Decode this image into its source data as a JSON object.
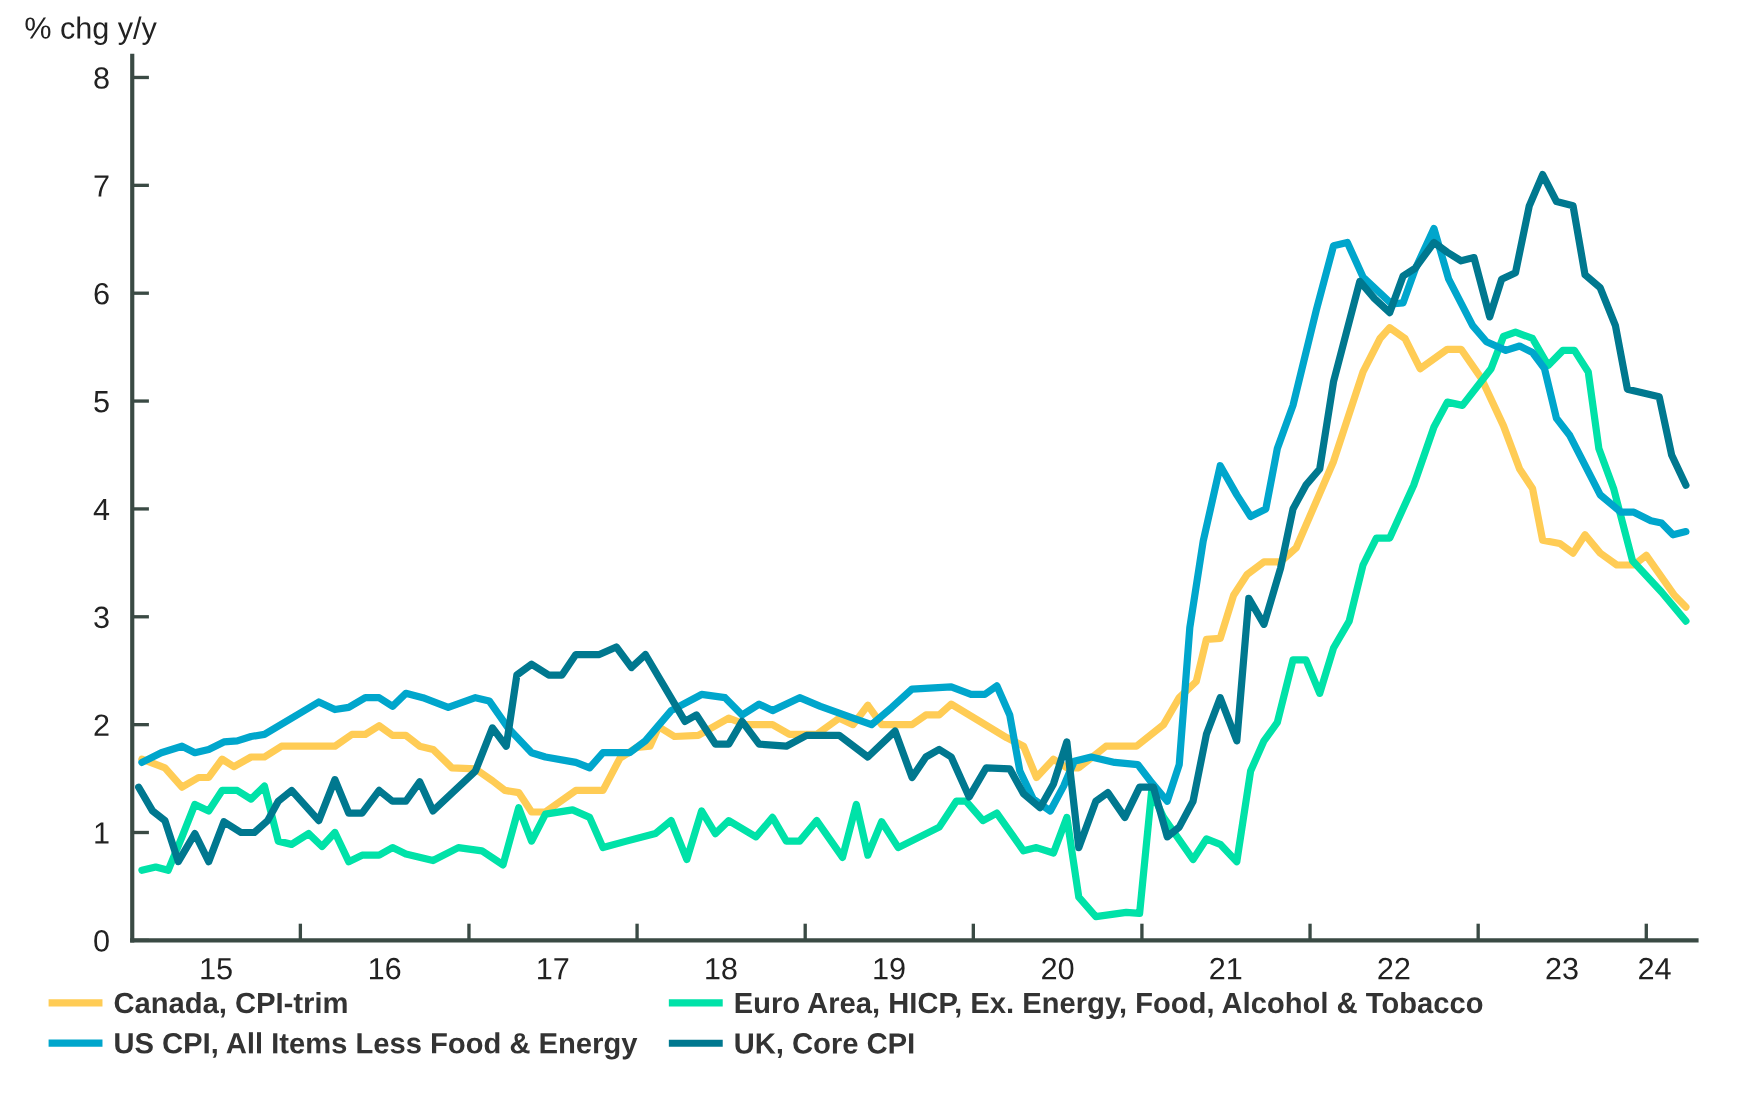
{
  "chart_data": {
    "type": "line",
    "ylabel": "% chg y/y",
    "xlim": [
      "2015-01-01",
      "2024-04-19"
    ],
    "ylim": [
      0,
      8.2
    ],
    "yticks": [
      0,
      1,
      2,
      3,
      4,
      5,
      6,
      7,
      8
    ],
    "xticks": [
      {
        "value": "2016-01-01",
        "label": null
      },
      {
        "value": "2017-01-01",
        "label": null
      },
      {
        "value": "2018-01-01",
        "label": null
      },
      {
        "value": "2019-01-01",
        "label": null
      },
      {
        "value": "2020-01-01",
        "label": null
      },
      {
        "value": "2021-01-01",
        "label": null
      },
      {
        "value": "2022-01-01",
        "label": null
      },
      {
        "value": "2023-01-01",
        "label": null
      },
      {
        "value": "2024-01-01",
        "label": null
      },
      {
        "value": "2015-07-02",
        "label": "15"
      },
      {
        "value": "2016-07-02",
        "label": "16"
      },
      {
        "value": "2017-07-02",
        "label": "17"
      },
      {
        "value": "2018-07-02",
        "label": "18"
      },
      {
        "value": "2019-07-02",
        "label": "19"
      },
      {
        "value": "2020-07-02",
        "label": "20"
      },
      {
        "value": "2021-07-02",
        "label": "21"
      },
      {
        "value": "2022-07-02",
        "label": "22"
      },
      {
        "value": "2023-07-02",
        "label": "23"
      },
      {
        "value": "2024-01-19",
        "label": "24"
      }
    ],
    "grid": false,
    "legend": "bottom",
    "marker": "none",
    "line_style": "solid",
    "series": [
      {
        "name": "Canada, CPI-trim",
        "color": "#ffcc55",
        "x": [
          "2015-01-22",
          "2015-03-13",
          "2015-04-19",
          "2015-05-25",
          "2015-06-16",
          "2015-07-15",
          "2015-08-10",
          "2015-09-16",
          "2015-10-15",
          "2015-11-21",
          "2016-03-16",
          "2016-04-22",
          "2016-05-21",
          "2016-06-20",
          "2016-07-19",
          "2016-08-17",
          "2016-09-16",
          "2016-10-15",
          "2016-11-25",
          "2017-01-15",
          "2017-02-21",
          "2017-03-20",
          "2017-04-19",
          "2017-05-17",
          "2017-06-16",
          "2017-08-21",
          "2017-10-19",
          "2017-11-25",
          "2018-01-01",
          "2018-01-29",
          "2018-02-17",
          "2018-03-23",
          "2018-05-14",
          "2018-07-19",
          "2018-08-25",
          "2018-10-22",
          "2018-11-28",
          "2019-01-26",
          "2019-03-16",
          "2019-04-15",
          "2019-05-17",
          "2019-06-16",
          "2019-08-21",
          "2019-09-20",
          "2019-10-19",
          "2019-11-14",
          "2020-01-15",
          "2020-03-13",
          "2020-04-19",
          "2020-05-17",
          "2020-06-23",
          "2020-07-22",
          "2020-08-17",
          "2020-10-15",
          "2020-12-20",
          "2021-02-17",
          "2021-03-23",
          "2021-04-29",
          "2021-05-21",
          "2021-06-20",
          "2021-07-19",
          "2021-08-17",
          "2021-09-23",
          "2021-10-29",
          "2021-12-02",
          "2022-02-21",
          "2022-04-26",
          "2022-06-02",
          "2022-06-23",
          "2022-07-26",
          "2022-08-28",
          "2022-10-26",
          "2022-11-25",
          "2023-01-08",
          "2023-02-25",
          "2023-04-01",
          "2023-04-29",
          "2023-05-21",
          "2023-06-27",
          "2023-07-26",
          "2023-08-21",
          "2023-09-23",
          "2023-10-29",
          "2023-12-05",
          "2024-01-01",
          "2024-03-02",
          "2024-03-27"
        ],
        "values": [
          1.68,
          1.6,
          1.42,
          1.51,
          1.51,
          1.68,
          1.61,
          1.7,
          1.7,
          1.8,
          1.8,
          1.91,
          1.91,
          1.99,
          1.9,
          1.9,
          1.8,
          1.77,
          1.6,
          1.59,
          1.48,
          1.39,
          1.37,
          1.19,
          1.19,
          1.39,
          1.39,
          1.69,
          1.79,
          1.8,
          1.98,
          1.89,
          1.9,
          2.06,
          2.0,
          2.0,
          1.91,
          1.91,
          2.06,
          2.0,
          2.18,
          2.0,
          2.0,
          2.09,
          2.09,
          2.19,
          2.03,
          1.88,
          1.8,
          1.51,
          1.68,
          1.6,
          1.6,
          1.8,
          1.8,
          2.0,
          2.25,
          2.4,
          2.79,
          2.8,
          3.2,
          3.39,
          3.51,
          3.51,
          3.64,
          4.44,
          5.27,
          5.58,
          5.68,
          5.58,
          5.3,
          5.48,
          5.48,
          5.21,
          4.77,
          4.37,
          4.19,
          3.71,
          3.68,
          3.59,
          3.76,
          3.59,
          3.48,
          3.48,
          3.57,
          3.2,
          3.09
        ]
      },
      {
        "name": "Euro Area, HICP, Ex. Energy, Food, Alcohol & Tobacco",
        "color": "#00e2a8",
        "x": [
          "2015-01-22",
          "2015-02-21",
          "2015-03-20",
          "2015-04-19",
          "2015-05-17",
          "2015-06-16",
          "2015-07-15",
          "2015-08-17",
          "2015-09-16",
          "2015-10-15",
          "2015-11-14",
          "2015-12-13",
          "2016-01-19",
          "2016-02-17",
          "2016-03-16",
          "2016-04-15",
          "2016-05-14",
          "2016-06-20",
          "2016-07-19",
          "2016-08-17",
          "2016-10-15",
          "2016-12-09",
          "2017-01-29",
          "2017-03-16",
          "2017-04-19",
          "2017-05-17",
          "2017-06-16",
          "2017-08-14",
          "2017-09-20",
          "2017-10-19",
          "2017-12-09",
          "2018-02-10",
          "2018-03-16",
          "2018-04-19",
          "2018-05-21",
          "2018-06-20",
          "2018-07-19",
          "2018-09-16",
          "2018-10-22",
          "2018-11-21",
          "2018-12-20",
          "2019-01-26",
          "2019-03-23",
          "2019-04-22",
          "2019-05-17",
          "2019-06-16",
          "2019-07-22",
          "2019-10-19",
          "2019-11-25",
          "2019-12-16",
          "2020-01-22",
          "2020-02-21",
          "2020-04-19",
          "2020-05-17",
          "2020-06-23",
          "2020-07-22",
          "2020-08-17",
          "2020-09-23",
          "2020-11-28",
          "2020-12-27",
          "2021-01-22",
          "2021-02-17",
          "2021-04-22",
          "2021-05-21",
          "2021-06-20",
          "2021-07-26",
          "2021-08-25",
          "2021-09-23",
          "2021-10-22",
          "2021-11-25",
          "2021-12-23",
          "2022-01-22",
          "2022-02-21",
          "2022-03-27",
          "2022-04-26",
          "2022-05-25",
          "2022-06-23",
          "2022-08-14",
          "2022-09-27",
          "2022-10-26",
          "2022-11-28",
          "2023-01-29",
          "2023-02-25",
          "2023-03-23",
          "2023-04-29",
          "2023-06-02",
          "2023-07-04",
          "2023-07-29",
          "2023-08-28",
          "2023-09-20",
          "2023-10-22",
          "2023-12-02",
          "2024-02-03",
          "2024-03-27"
        ],
        "values": [
          0.65,
          0.68,
          0.65,
          0.96,
          1.26,
          1.2,
          1.39,
          1.39,
          1.31,
          1.43,
          0.92,
          0.89,
          0.99,
          0.87,
          1.0,
          0.73,
          0.79,
          0.79,
          0.86,
          0.8,
          0.74,
          0.86,
          0.83,
          0.7,
          1.23,
          0.92,
          1.17,
          1.21,
          1.14,
          0.86,
          0.92,
          0.99,
          1.11,
          0.75,
          1.2,
          0.99,
          1.11,
          0.96,
          1.14,
          0.92,
          0.92,
          1.11,
          0.77,
          1.26,
          0.79,
          1.1,
          0.86,
          1.05,
          1.29,
          1.29,
          1.11,
          1.18,
          0.83,
          0.86,
          0.81,
          1.14,
          0.4,
          0.22,
          0.26,
          0.25,
          1.38,
          1.14,
          0.75,
          0.94,
          0.89,
          0.73,
          1.57,
          1.85,
          2.02,
          2.6,
          2.6,
          2.29,
          2.71,
          2.96,
          3.48,
          3.73,
          3.73,
          4.22,
          4.76,
          4.99,
          4.96,
          5.3,
          5.6,
          5.64,
          5.58,
          5.33,
          5.47,
          5.47,
          5.27,
          4.56,
          4.19,
          3.52,
          3.23,
          2.96
        ]
      },
      {
        "name": "US CPI, All Items Less Food & Energy",
        "color": "#00a6cc",
        "x": [
          "2015-01-22",
          "2015-03-05",
          "2015-04-19",
          "2015-05-17",
          "2015-06-16",
          "2015-07-19",
          "2015-08-17",
          "2015-09-16",
          "2015-10-15",
          "2016-02-10",
          "2016-03-16",
          "2016-04-15",
          "2016-05-21",
          "2016-06-20",
          "2016-07-19",
          "2016-08-17",
          "2016-09-23",
          "2016-11-17",
          "2017-01-15",
          "2017-02-14",
          "2017-03-27",
          "2017-05-17",
          "2017-06-16",
          "2017-08-21",
          "2017-09-20",
          "2017-10-19",
          "2017-12-16",
          "2018-01-19",
          "2018-03-16",
          "2018-05-21",
          "2018-07-11",
          "2018-08-17",
          "2018-09-23",
          "2018-10-22",
          "2018-12-20",
          "2019-02-03",
          "2019-04-15",
          "2019-05-25",
          "2019-07-08",
          "2019-08-21",
          "2019-11-14",
          "2019-12-27",
          "2020-01-26",
          "2020-02-21",
          "2020-03-20",
          "2020-04-11",
          "2020-05-10",
          "2020-06-16",
          "2020-07-15",
          "2020-08-07",
          "2020-09-13",
          "2020-11-03",
          "2020-12-23",
          "2021-01-19",
          "2021-02-25",
          "2021-03-23",
          "2021-04-15",
          "2021-05-14",
          "2021-06-20",
          "2021-07-26",
          "2021-08-25",
          "2021-09-27",
          "2021-10-22",
          "2021-11-25",
          "2022-01-15",
          "2022-02-21",
          "2022-03-23",
          "2022-04-26",
          "2022-06-27",
          "2022-07-22",
          "2022-08-17",
          "2022-09-27",
          "2022-10-29",
          "2022-12-20",
          "2023-01-19",
          "2023-03-02",
          "2023-04-01",
          "2023-04-29",
          "2023-05-25",
          "2023-06-20",
          "2023-07-19",
          "2023-09-23",
          "2023-11-07",
          "2023-12-05",
          "2024-01-11",
          "2024-02-03",
          "2024-02-28",
          "2024-03-27"
        ],
        "values": [
          1.65,
          1.74,
          1.8,
          1.74,
          1.77,
          1.84,
          1.85,
          1.89,
          1.91,
          2.21,
          2.14,
          2.16,
          2.25,
          2.25,
          2.17,
          2.29,
          2.25,
          2.16,
          2.25,
          2.22,
          1.97,
          1.74,
          1.7,
          1.65,
          1.6,
          1.74,
          1.74,
          1.85,
          2.13,
          2.28,
          2.25,
          2.09,
          2.19,
          2.13,
          2.25,
          2.17,
          2.06,
          2.0,
          2.16,
          2.33,
          2.35,
          2.28,
          2.28,
          2.36,
          2.09,
          1.57,
          1.31,
          1.2,
          1.43,
          1.66,
          1.7,
          1.65,
          1.63,
          1.48,
          1.29,
          1.63,
          2.9,
          3.7,
          4.4,
          4.13,
          3.93,
          4.0,
          4.56,
          4.96,
          5.85,
          6.44,
          6.47,
          6.15,
          5.9,
          5.91,
          6.22,
          6.6,
          6.13,
          5.7,
          5.55,
          5.47,
          5.51,
          5.45,
          5.3,
          4.84,
          4.68,
          4.13,
          3.97,
          3.97,
          3.89,
          3.87,
          3.76,
          3.79
        ]
      },
      {
        "name": "UK, Core CPI",
        "color": "#00788f",
        "x": [
          "2015-01-15",
          "2015-02-14",
          "2015-03-13",
          "2015-04-11",
          "2015-05-17",
          "2015-06-16",
          "2015-07-19",
          "2015-08-25",
          "2015-09-23",
          "2015-10-22",
          "2015-11-14",
          "2015-12-13",
          "2016-02-10",
          "2016-03-16",
          "2016-04-15",
          "2016-05-14",
          "2016-06-20",
          "2016-07-19",
          "2016-08-17",
          "2016-09-16",
          "2016-10-15",
          "2017-01-15",
          "2017-02-21",
          "2017-03-23",
          "2017-04-15",
          "2017-05-17",
          "2017-06-23",
          "2017-07-22",
          "2017-08-21",
          "2017-10-11",
          "2017-11-17",
          "2017-12-20",
          "2018-01-19",
          "2018-04-15",
          "2018-05-10",
          "2018-06-20",
          "2018-07-19",
          "2018-08-17",
          "2018-09-23",
          "2018-11-21",
          "2019-01-04",
          "2019-03-16",
          "2019-05-17",
          "2019-07-15",
          "2019-08-21",
          "2019-09-20",
          "2019-10-19",
          "2019-11-14",
          "2019-12-23",
          "2020-01-29",
          "2020-03-20",
          "2020-04-19",
          "2020-05-25",
          "2020-06-23",
          "2020-07-22",
          "2020-08-17",
          "2020-09-23",
          "2020-10-19",
          "2020-11-25",
          "2020-12-27",
          "2021-01-26",
          "2021-02-25",
          "2021-03-23",
          "2021-04-22",
          "2021-05-21",
          "2021-06-20",
          "2021-07-26",
          "2021-08-21",
          "2021-09-23",
          "2021-10-29",
          "2021-11-25",
          "2021-12-23",
          "2022-01-22",
          "2022-02-21",
          "2022-04-19",
          "2022-05-21",
          "2022-06-23",
          "2022-07-22",
          "2022-08-17",
          "2022-09-27",
          "2022-10-26",
          "2022-11-25",
          "2022-12-23",
          "2023-01-26",
          "2023-02-21",
          "2023-03-23",
          "2023-04-22",
          "2023-05-21",
          "2023-06-20",
          "2023-07-26",
          "2023-08-21",
          "2023-09-23",
          "2023-10-26",
          "2023-11-21",
          "2024-01-29",
          "2024-02-25",
          "2024-03-27"
        ],
        "values": [
          1.42,
          1.2,
          1.11,
          0.73,
          0.99,
          0.73,
          1.1,
          1.0,
          1.0,
          1.11,
          1.29,
          1.39,
          1.11,
          1.49,
          1.18,
          1.18,
          1.39,
          1.29,
          1.29,
          1.47,
          1.2,
          1.57,
          1.97,
          1.8,
          2.46,
          2.56,
          2.46,
          2.46,
          2.65,
          2.65,
          2.72,
          2.53,
          2.65,
          2.03,
          2.09,
          1.82,
          1.82,
          2.03,
          1.82,
          1.8,
          1.9,
          1.9,
          1.7,
          1.94,
          1.51,
          1.7,
          1.77,
          1.7,
          1.33,
          1.6,
          1.59,
          1.36,
          1.23,
          1.45,
          1.84,
          0.86,
          1.29,
          1.37,
          1.14,
          1.42,
          1.42,
          0.96,
          1.05,
          1.29,
          1.91,
          2.25,
          1.85,
          3.17,
          2.93,
          3.45,
          4.0,
          4.22,
          4.37,
          5.18,
          6.11,
          5.95,
          5.82,
          6.16,
          6.23,
          6.47,
          6.38,
          6.3,
          6.33,
          5.78,
          6.13,
          6.19,
          6.81,
          7.1,
          6.85,
          6.81,
          6.17,
          6.05,
          5.7,
          5.11,
          5.04,
          4.5,
          4.22
        ]
      }
    ]
  }
}
